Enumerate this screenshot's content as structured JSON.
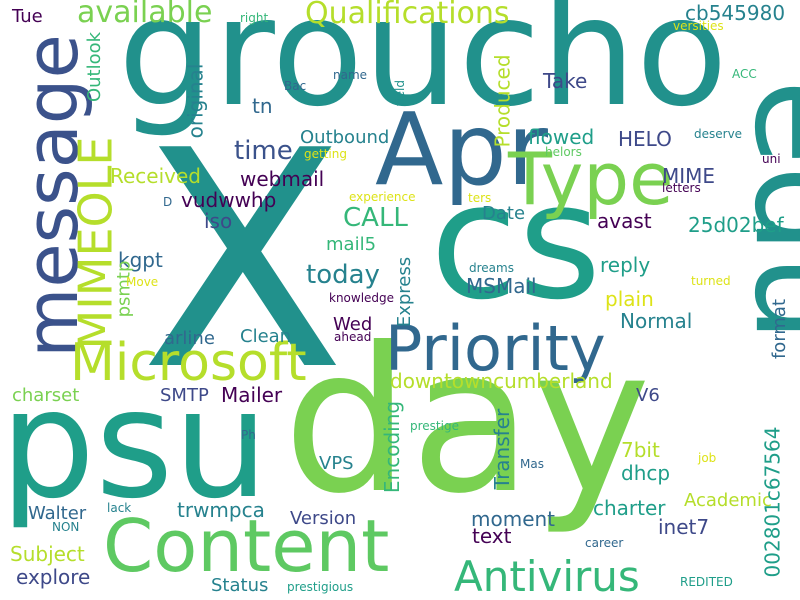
{
  "words": [
    {
      "text": "groucho",
      "size": 150,
      "color": "#21918c",
      "rotate": 0
    },
    {
      "text": "X",
      "size": 300,
      "color": "#21918c",
      "rotate": 0
    },
    {
      "text": "cs",
      "size": 160,
      "color": "#1f9e89",
      "rotate": 0
    },
    {
      "text": "edu",
      "size": 140,
      "color": "#21918c",
      "rotate": 90
    },
    {
      "text": "psu",
      "size": 150,
      "color": "#1f9e89",
      "rotate": 0
    },
    {
      "text": "day",
      "size": 200,
      "color": "#7ad151",
      "rotate": 0
    },
    {
      "text": "message",
      "size": 72,
      "color": "#3b528b",
      "rotate": -90
    },
    {
      "text": "Apr",
      "size": 100,
      "color": "#31688e",
      "rotate": 0
    },
    {
      "text": "Type",
      "size": 72,
      "color": "#7ad151",
      "rotate": 0
    },
    {
      "text": "Priority",
      "size": 62,
      "color": "#31688e",
      "rotate": 0
    },
    {
      "text": "Content",
      "size": 72,
      "color": "#5ec962",
      "rotate": 0
    },
    {
      "text": "Microsoft",
      "size": 52,
      "color": "#b5de2b",
      "rotate": 0
    },
    {
      "text": "MIMEOLE",
      "size": 46,
      "color": "#b5de2b",
      "rotate": -90
    },
    {
      "text": "Antivirus",
      "size": 42,
      "color": "#35b779",
      "rotate": 0
    },
    {
      "text": "Qualifications",
      "size": 30,
      "color": "#b5de2b",
      "rotate": 0
    },
    {
      "text": "available",
      "size": 30,
      "color": "#7ad151",
      "rotate": 0
    },
    {
      "text": "cb545980",
      "size": 20,
      "color": "#26828e",
      "rotate": 0
    },
    {
      "text": "Tue",
      "size": 18,
      "color": "#440154",
      "rotate": 0
    },
    {
      "text": "right",
      "size": 12,
      "color": "#35b779",
      "rotate": 0
    },
    {
      "text": "versities",
      "size": 12,
      "color": "#dde318",
      "rotate": 0
    },
    {
      "text": "Outlook",
      "size": 18,
      "color": "#35b779",
      "rotate": -90
    },
    {
      "text": "Take",
      "size": 20,
      "color": "#3e4989",
      "rotate": 0
    },
    {
      "text": "ACC",
      "size": 12,
      "color": "#35b779",
      "rotate": 0
    },
    {
      "text": "name",
      "size": 12,
      "color": "#31688e",
      "rotate": 0
    },
    {
      "text": "Bac",
      "size": 12,
      "color": "#31688e",
      "rotate": 0
    },
    {
      "text": "field",
      "size": 12,
      "color": "#21918c",
      "rotate": -90
    },
    {
      "text": "Produced",
      "size": 20,
      "color": "#b5de2b",
      "rotate": -90
    },
    {
      "text": "original",
      "size": 20,
      "color": "#26828e",
      "rotate": -90
    },
    {
      "text": "tn",
      "size": 20,
      "color": "#31688e",
      "rotate": 0
    },
    {
      "text": "Outbound",
      "size": 18,
      "color": "#26828e",
      "rotate": 0
    },
    {
      "text": "deserve",
      "size": 12,
      "color": "#26828e",
      "rotate": 0
    },
    {
      "text": "time",
      "size": 26,
      "color": "#3b528b",
      "rotate": 0
    },
    {
      "text": "getting",
      "size": 12,
      "color": "#dde318",
      "rotate": 0
    },
    {
      "text": "helors",
      "size": 12,
      "color": "#5ec962",
      "rotate": 0
    },
    {
      "text": "uni",
      "size": 12,
      "color": "#440154",
      "rotate": 0
    },
    {
      "text": "flowed",
      "size": 20,
      "color": "#1f9e89",
      "rotate": 0
    },
    {
      "text": "HELO",
      "size": 20,
      "color": "#3e4989",
      "rotate": 0
    },
    {
      "text": "Received",
      "size": 20,
      "color": "#b5de2b",
      "rotate": 0
    },
    {
      "text": "webmail",
      "size": 20,
      "color": "#440154",
      "rotate": 0
    },
    {
      "text": "MIME",
      "size": 20,
      "color": "#3e4989",
      "rotate": 0
    },
    {
      "text": "letters",
      "size": 12,
      "color": "#440154",
      "rotate": 0
    },
    {
      "text": "experience",
      "size": 12,
      "color": "#dde318",
      "rotate": 0
    },
    {
      "text": "ters",
      "size": 12,
      "color": "#dde318",
      "rotate": 0
    },
    {
      "text": "D",
      "size": 12,
      "color": "#31688e",
      "rotate": 0
    },
    {
      "text": "vudwwhp",
      "size": 20,
      "color": "#440154",
      "rotate": 0
    },
    {
      "text": "Date",
      "size": 18,
      "color": "#26828e",
      "rotate": 0
    },
    {
      "text": "25d02bef",
      "size": 20,
      "color": "#1f9e89",
      "rotate": 0
    },
    {
      "text": "iso",
      "size": 20,
      "color": "#3e4989",
      "rotate": 0
    },
    {
      "text": "CALL",
      "size": 26,
      "color": "#35b779",
      "rotate": 0
    },
    {
      "text": "avast",
      "size": 20,
      "color": "#440154",
      "rotate": 0
    },
    {
      "text": "mail5",
      "size": 18,
      "color": "#35b779",
      "rotate": 0
    },
    {
      "text": "kgpt",
      "size": 20,
      "color": "#31688e",
      "rotate": 0
    },
    {
      "text": "today",
      "size": 26,
      "color": "#26828e",
      "rotate": 0
    },
    {
      "text": "dreams",
      "size": 12,
      "color": "#26828e",
      "rotate": 0
    },
    {
      "text": "reply",
      "size": 20,
      "color": "#1f9e89",
      "rotate": 0
    },
    {
      "text": "psmtp",
      "size": 18,
      "color": "#7ad151",
      "rotate": -90
    },
    {
      "text": "Move",
      "size": 12,
      "color": "#dde318",
      "rotate": 0
    },
    {
      "text": "Express",
      "size": 18,
      "color": "#26828e",
      "rotate": -90
    },
    {
      "text": "MSMail",
      "size": 20,
      "color": "#31688e",
      "rotate": 0
    },
    {
      "text": "turned",
      "size": 12,
      "color": "#dde318",
      "rotate": 0
    },
    {
      "text": "knowledge",
      "size": 12,
      "color": "#440154",
      "rotate": 0
    },
    {
      "text": "plain",
      "size": 20,
      "color": "#dde318",
      "rotate": 0
    },
    {
      "text": "Wed",
      "size": 18,
      "color": "#440154",
      "rotate": 0
    },
    {
      "text": "Normal",
      "size": 20,
      "color": "#26828e",
      "rotate": 0
    },
    {
      "text": "arline",
      "size": 18,
      "color": "#31688e",
      "rotate": 0
    },
    {
      "text": "Clean",
      "size": 18,
      "color": "#26828e",
      "rotate": 0
    },
    {
      "text": "ahead",
      "size": 12,
      "color": "#440154",
      "rotate": 0
    },
    {
      "text": "format",
      "size": 18,
      "color": "#31688e",
      "rotate": -90
    },
    {
      "text": "downtowncumberland",
      "size": 20,
      "color": "#b5de2b",
      "rotate": 0
    },
    {
      "text": "charset",
      "size": 18,
      "color": "#7ad151",
      "rotate": 0
    },
    {
      "text": "SMTP",
      "size": 18,
      "color": "#3e4989",
      "rotate": 0
    },
    {
      "text": "Mailer",
      "size": 20,
      "color": "#440154",
      "rotate": 0
    },
    {
      "text": "V6",
      "size": 18,
      "color": "#3e4989",
      "rotate": 0
    },
    {
      "text": "prestige",
      "size": 12,
      "color": "#35b779",
      "rotate": 0
    },
    {
      "text": "Encoding",
      "size": 20,
      "color": "#35b779",
      "rotate": -90
    },
    {
      "text": "Transfer",
      "size": 20,
      "color": "#26828e",
      "rotate": -90
    },
    {
      "text": "7bit",
      "size": 20,
      "color": "#b5de2b",
      "rotate": 0
    },
    {
      "text": "Ph",
      "size": 12,
      "color": "#31688e",
      "rotate": 0
    },
    {
      "text": "Mas",
      "size": 12,
      "color": "#31688e",
      "rotate": 0
    },
    {
      "text": "job",
      "size": 12,
      "color": "#dde318",
      "rotate": 0
    },
    {
      "text": "VPS",
      "size": 18,
      "color": "#26828e",
      "rotate": 0
    },
    {
      "text": "dhcp",
      "size": 20,
      "color": "#1f9e89",
      "rotate": 0
    },
    {
      "text": "Academic",
      "size": 18,
      "color": "#b5de2b",
      "rotate": 0
    },
    {
      "text": "002801c67564",
      "size": 20,
      "color": "#1f9e89",
      "rotate": -90
    },
    {
      "text": "trwmpca",
      "size": 20,
      "color": "#26828e",
      "rotate": 0
    },
    {
      "text": "Walter",
      "size": 18,
      "color": "#31688e",
      "rotate": 0
    },
    {
      "text": "lack",
      "size": 12,
      "color": "#26828e",
      "rotate": 0
    },
    {
      "text": "NON",
      "size": 12,
      "color": "#26828e",
      "rotate": 0
    },
    {
      "text": "Version",
      "size": 18,
      "color": "#3e4989",
      "rotate": 0
    },
    {
      "text": "moment",
      "size": 20,
      "color": "#31688e",
      "rotate": 0
    },
    {
      "text": "charter",
      "size": 20,
      "color": "#1f9e89",
      "rotate": 0
    },
    {
      "text": "text",
      "size": 20,
      "color": "#440154",
      "rotate": 0
    },
    {
      "text": "inet7",
      "size": 20,
      "color": "#3e4989",
      "rotate": 0
    },
    {
      "text": "Subject",
      "size": 20,
      "color": "#b5de2b",
      "rotate": 0
    },
    {
      "text": "career",
      "size": 12,
      "color": "#31688e",
      "rotate": 0
    },
    {
      "text": "explore",
      "size": 20,
      "color": "#3e4989",
      "rotate": 0
    },
    {
      "text": "Status",
      "size": 18,
      "color": "#26828e",
      "rotate": 0
    },
    {
      "text": "prestigious",
      "size": 12,
      "color": "#1f9e89",
      "rotate": 0
    },
    {
      "text": "REDITED",
      "size": 12,
      "color": "#1f9e89",
      "rotate": 0
    }
  ]
}
